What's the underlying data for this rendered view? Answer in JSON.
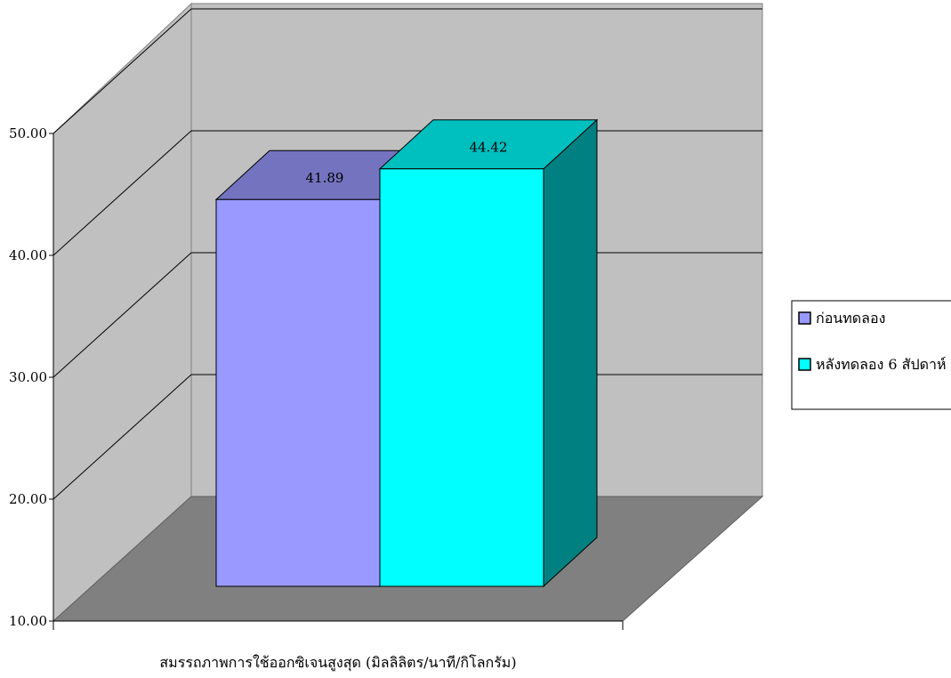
{
  "chart_data": {
    "type": "bar",
    "subtype": "3d-clustered",
    "categories": [
      "สมรรถภาพการใช้ออกซิเจนสูงสุด (มิลลิลิตร/นาที/กิโลกรัม)"
    ],
    "series": [
      {
        "name": "ก่อนทดลอง",
        "values": [
          41.89
        ],
        "color": "#9999ff"
      },
      {
        "name": "หลังทดลอง 6 สัปดาห์",
        "values": [
          44.42
        ],
        "color": "#00ffff"
      }
    ],
    "data_labels": [
      "41.89",
      "44.42"
    ],
    "xlabel": "สมรรถภาพการใช้ออกซิเจนสูงสุด (มิลลิลิตร/นาที/กิโลกรัม)",
    "ylabel": "",
    "ylim": [
      10,
      50
    ],
    "y_ticks": [
      "10.00",
      "20.00",
      "30.00",
      "40.00",
      "50.00"
    ],
    "grid": true,
    "legend_position": "right",
    "colors": {
      "back_wall": "#c0c0c0",
      "floor": "#808080",
      "gridline": "#000000"
    }
  }
}
